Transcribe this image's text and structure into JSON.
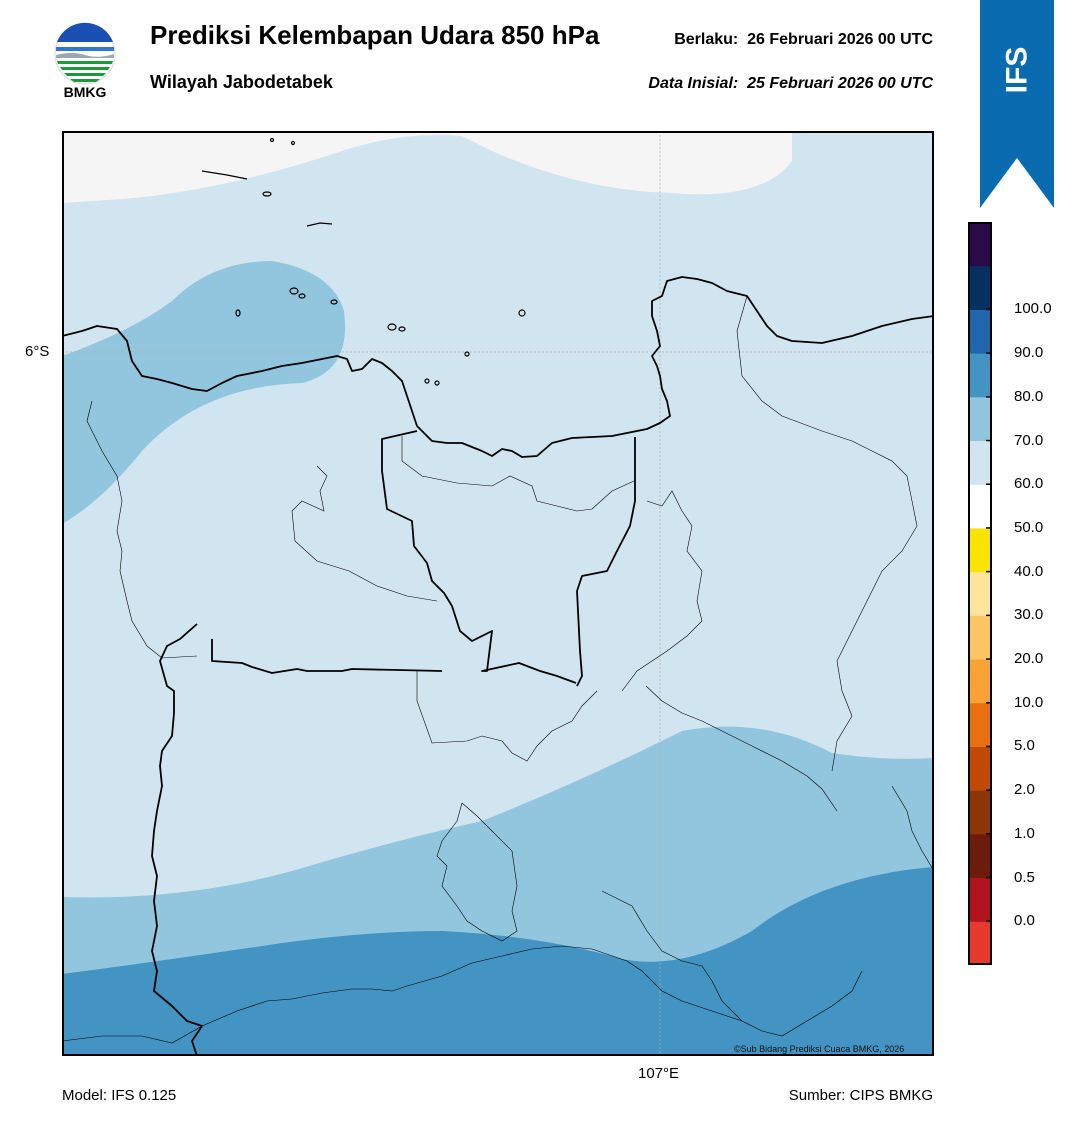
{
  "header": {
    "title": "Prediksi Kelembapan Udara 850 hPa",
    "subtitle": "Wilayah Jabodetabek",
    "valid_label": "Berlaku:",
    "valid_time": "26 Februari 2026 00 UTC",
    "init_label": "Data Inisial:",
    "init_time": "25 Februari 2026 00 UTC",
    "logo_text": "BMKG",
    "badge": "IFS"
  },
  "map": {
    "lat_label": "6°S",
    "lon_label": "107°E",
    "copyright": "©Sub Bidang Prediksi Cuaca BMKG, 2026",
    "colors": {
      "below_50": "#f5f5f5",
      "50_60": "#d1e5f0",
      "60_70": "#92c5de",
      "70_80": "#4393c3",
      "coast": "#000000"
    }
  },
  "footer": {
    "model": "Model: IFS 0.125",
    "source": "Sumber: CIPS BMKG"
  },
  "legend": {
    "ticks": [
      "0.0",
      "0.5",
      "1.0",
      "2.0",
      "5.0",
      "10.0",
      "20.0",
      "30.0",
      "40.0",
      "50.0",
      "60.0",
      "70.0",
      "80.0",
      "90.0",
      "100.0"
    ],
    "colors": [
      "#e8392f",
      "#b2141f",
      "#6b1c0c",
      "#8c3508",
      "#c04a05",
      "#e87010",
      "#f9a236",
      "#fdc664",
      "#ffe49e",
      "#f9e400",
      "#ffffff",
      "#d1e5f0",
      "#92c5de",
      "#4393c3",
      "#2166ac",
      "#053061",
      "#2b0a4a"
    ]
  }
}
